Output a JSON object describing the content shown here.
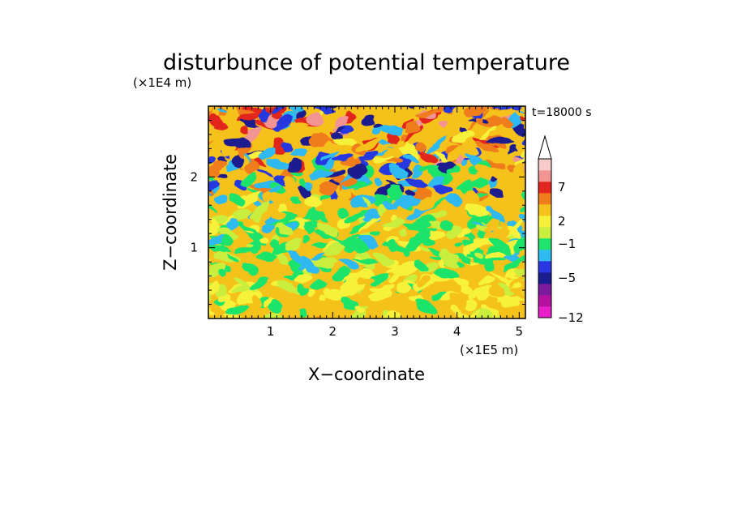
{
  "chart_data": {
    "type": "heatmap",
    "title": "disturbunce of potential temperature",
    "time_label": "t=18000 s",
    "xlabel": "X−coordinate",
    "ylabel": "Z−coordinate",
    "x_unit": "(×1E5 m)",
    "y_unit": "(×1E4 m)",
    "xlim": [
      0,
      5.1
    ],
    "ylim": [
      0,
      3.0
    ],
    "x_ticks": [
      1,
      2,
      3,
      4,
      5
    ],
    "y_ticks": [
      1,
      2
    ],
    "x_tick_labels": [
      "1",
      "2",
      "3",
      "4",
      "5"
    ],
    "y_tick_labels": [
      "1",
      "2"
    ],
    "colorbar": {
      "labels": [
        {
          "value": 7,
          "text": "7"
        },
        {
          "value": 2,
          "text": "2"
        },
        {
          "value": -1,
          "text": "−1"
        },
        {
          "value": -5,
          "text": "−5"
        },
        {
          "value": -12,
          "text": "−12"
        }
      ],
      "levels": [
        {
          "color": "#e81ec8"
        },
        {
          "color": "#b4129e"
        },
        {
          "color": "#7a1a9c"
        },
        {
          "color": "#1b1d8f"
        },
        {
          "color": "#2837e0"
        },
        {
          "color": "#2fbaf0"
        },
        {
          "color": "#1fe36b"
        },
        {
          "color": "#c9ee3d"
        },
        {
          "color": "#f6f23a"
        },
        {
          "color": "#f5c21c"
        },
        {
          "color": "#ef7d1b"
        },
        {
          "color": "#e3261f"
        },
        {
          "color": "#f29494"
        },
        {
          "color": "#f9cbcb"
        }
      ],
      "overflow_arrow": true
    }
  }
}
